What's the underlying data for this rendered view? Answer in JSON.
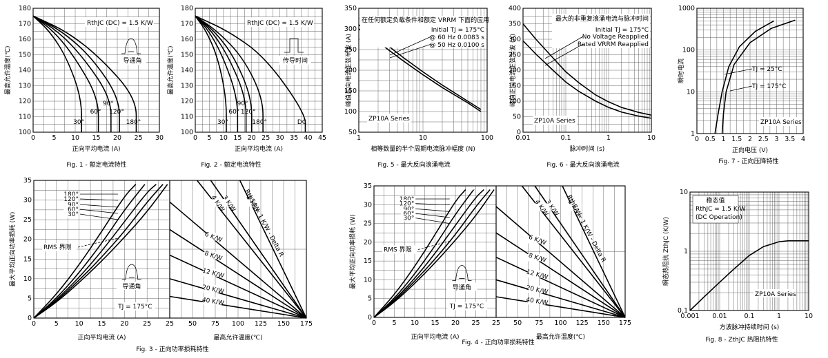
{
  "chart_data": [
    {
      "id": "fig1",
      "type": "line",
      "caption": "Fig. 1 - 额定电流特性",
      "xlabel": "正向平均电流 (A)",
      "ylabel": "最高允许温度(℃)",
      "xlim": [
        0,
        30
      ],
      "ylim": [
        100,
        180
      ],
      "xticks": [
        0,
        5,
        10,
        15,
        20,
        25,
        30
      ],
      "yticks": [
        100,
        110,
        120,
        130,
        140,
        150,
        160,
        170,
        180
      ],
      "grid": true,
      "annotations": [
        "RthJC (DC) = 1.5 K/W",
        "导通角"
      ],
      "series": [
        {
          "name": "30°",
          "x": [
            0,
            4,
            8,
            11.5,
            11.5
          ],
          "y": [
            175,
            165,
            148,
            122,
            100
          ]
        },
        {
          "name": "60°",
          "x": [
            0,
            5,
            10,
            15.5,
            15.5
          ],
          "y": [
            175,
            165,
            148,
            122,
            100
          ]
        },
        {
          "name": "90°",
          "x": [
            0,
            6,
            12,
            18.5,
            18.5
          ],
          "y": [
            175,
            165,
            148,
            122,
            100
          ]
        },
        {
          "name": "120°",
          "x": [
            0,
            7,
            14,
            20.5,
            20.5
          ],
          "y": [
            175,
            165,
            148,
            122,
            100
          ]
        },
        {
          "name": "180°",
          "x": [
            0,
            8,
            16,
            24.5,
            24.5
          ],
          "y": [
            175,
            165,
            148,
            122,
            100
          ]
        }
      ]
    },
    {
      "id": "fig2",
      "type": "line",
      "caption": "Fig. 2 - 额定电流特性",
      "xlabel": "正向平均电流 (A)",
      "ylabel": "最高允许温度(℃)",
      "xlim": [
        0,
        45
      ],
      "ylim": [
        100,
        180
      ],
      "xticks": [
        0,
        5,
        10,
        15,
        20,
        25,
        30,
        35,
        40,
        45
      ],
      "yticks": [
        100,
        110,
        120,
        130,
        140,
        150,
        160,
        170,
        180
      ],
      "grid": true,
      "annotations": [
        "RthJC (DC) = 1.5 K/W",
        "传导时间"
      ],
      "series": [
        {
          "name": "30°",
          "x": [
            0,
            4,
            8,
            11,
            11
          ],
          "y": [
            175,
            165,
            148,
            122,
            100
          ]
        },
        {
          "name": "60°",
          "x": [
            0,
            5,
            10,
            15,
            15
          ],
          "y": [
            175,
            165,
            148,
            122,
            100
          ]
        },
        {
          "name": "90°",
          "x": [
            0,
            6,
            12,
            18,
            18
          ],
          "y": [
            175,
            165,
            148,
            122,
            100
          ]
        },
        {
          "name": "120°",
          "x": [
            0,
            7,
            14,
            20,
            20
          ],
          "y": [
            175,
            165,
            148,
            122,
            100
          ]
        },
        {
          "name": "180°",
          "x": [
            0,
            8,
            17,
            24,
            24
          ],
          "y": [
            175,
            165,
            148,
            122,
            100
          ]
        },
        {
          "name": "DC",
          "x": [
            0,
            12,
            25,
            39,
            39
          ],
          "y": [
            175,
            165,
            148,
            112,
            100
          ]
        }
      ]
    },
    {
      "id": "fig5",
      "type": "line",
      "caption": "Fig. 5 - 最大反向浪涌电流",
      "xlabel": "相等数量的半个周期电流脉冲幅度 (N)",
      "ylabel": "峰值正向电流正弦半波 (A)",
      "xscale": "log",
      "xlim": [
        1,
        100
      ],
      "ylim": [
        50,
        350
      ],
      "xticks": [
        1,
        10,
        100
      ],
      "yticks": [
        50,
        100,
        150,
        200,
        250,
        300,
        350
      ],
      "grid": true,
      "annotations": [
        "在任何额定负载条件和额定 VRRM 下面的应用",
        "Initial TJ = 175°C",
        "@ 60 Hz 0.0083 s",
        "@ 50 Hz 0.0100 s",
        "ZP10A Series"
      ],
      "series": [
        {
          "name": "@ 60 Hz 0.0083 s",
          "x": [
            1,
            2,
            5,
            10,
            20,
            50,
            80
          ],
          "y": [
            310,
            278,
            230,
            196,
            164,
            125,
            105
          ]
        },
        {
          "name": "@ 50 Hz 0.0100 s",
          "x": [
            1,
            2,
            5,
            10,
            20,
            50,
            80
          ],
          "y": [
            300,
            268,
            222,
            189,
            158,
            121,
            100
          ]
        }
      ]
    },
    {
      "id": "fig6",
      "type": "line",
      "caption": "Fig. 6 - 最大反向浪涌电流",
      "xlabel": "脉冲时间 (s)",
      "ylabel": "峰值正向电流正弦半波 (A)",
      "xscale": "log",
      "xlim": [
        0.01,
        10
      ],
      "ylim": [
        0,
        400
      ],
      "xticks": [
        0.01,
        0.1,
        1,
        10
      ],
      "yticks": [
        0,
        50,
        100,
        150,
        200,
        250,
        300,
        350,
        400
      ],
      "grid": true,
      "annotations": [
        "最大的非重复浪涌电流与脉冲时间",
        "Initial TJ = 175°C",
        "No Voltage Reapplied",
        "Rated VRRM Reapplied",
        "ZP10A Series"
      ],
      "series": [
        {
          "name": "No Voltage Reapplied",
          "x": [
            0.01,
            0.02,
            0.05,
            0.1,
            0.2,
            0.5,
            1,
            2,
            5,
            10
          ],
          "y": [
            350,
            300,
            240,
            195,
            160,
            120,
            98,
            80,
            64,
            55
          ]
        },
        {
          "name": "Rated VRRM Reapplied",
          "x": [
            0.01,
            0.02,
            0.05,
            0.1,
            0.2,
            0.5,
            1,
            2,
            5,
            10
          ],
          "y": [
            295,
            252,
            200,
            162,
            132,
            100,
            80,
            65,
            52,
            45
          ]
        }
      ]
    },
    {
      "id": "fig7",
      "type": "line",
      "caption": "Fig. 7 - 正向压降特性",
      "xlabel": "正向电压 (V)",
      "ylabel": "瞬时电流",
      "yscale": "log",
      "xlim": [
        0,
        4
      ],
      "ylim": [
        1,
        1000
      ],
      "xticks": [
        0,
        0.5,
        1,
        1.5,
        2,
        2.5,
        3,
        3.5,
        4
      ],
      "yticks": [
        1,
        10,
        100,
        1000
      ],
      "grid": true,
      "annotations": [
        "TJ = 25°C",
        "TJ = 175°C",
        "ZP10A Series"
      ],
      "series": [
        {
          "name": "TJ = 25°C",
          "x": [
            0.68,
            0.8,
            0.95,
            1.2,
            1.6,
            2.2,
            2.9
          ],
          "y": [
            1,
            3,
            10,
            40,
            120,
            280,
            500
          ]
        },
        {
          "name": "TJ = 175°C",
          "x": [
            0.95,
            1.0,
            1.1,
            1.4,
            2.0,
            2.8,
            3.7
          ],
          "y": [
            1,
            3,
            10,
            45,
            150,
            330,
            520
          ]
        }
      ]
    },
    {
      "id": "fig3-left",
      "type": "line",
      "caption": "Fig. 3 - 正向功率损耗特性",
      "xlabel": "正向平均电流 (A)",
      "ylabel": "最大平均正向功率损耗 (W)",
      "xlim": [
        0,
        30
      ],
      "ylim": [
        0,
        35
      ],
      "xticks": [
        0,
        5,
        10,
        15,
        20,
        25
      ],
      "yticks": [
        0,
        5,
        10,
        15,
        20,
        25,
        30,
        35
      ],
      "grid": true,
      "annotations": [
        "RMS 界限",
        "导通角",
        "TJ = 175°C"
      ],
      "series": [
        {
          "name": "180°",
          "x": [
            0,
            5,
            10,
            15,
            20,
            25,
            29.5
          ],
          "y": [
            0,
            4,
            9,
            14.5,
            20.5,
            27,
            34
          ]
        },
        {
          "name": "120°",
          "x": [
            0,
            5,
            10,
            15,
            20,
            25,
            28.5
          ],
          "y": [
            0,
            4.3,
            9.6,
            15.5,
            22,
            29.5,
            34
          ]
        },
        {
          "name": "90°",
          "x": [
            0,
            5,
            10,
            15,
            20,
            25,
            27
          ],
          "y": [
            0,
            4.6,
            10.3,
            17,
            24.5,
            32,
            34
          ]
        },
        {
          "name": "60°",
          "x": [
            0,
            5,
            10,
            15,
            20,
            24.5
          ],
          "y": [
            0,
            5,
            11.5,
            19,
            27.5,
            34
          ]
        },
        {
          "name": "30°",
          "x": [
            0,
            5,
            10,
            15,
            20,
            22.5
          ],
          "y": [
            0,
            6,
            13.5,
            22,
            31,
            34
          ]
        }
      ]
    },
    {
      "id": "fig3-right",
      "type": "line",
      "xlabel": "最高允许温度(℃)",
      "xlim": [
        25,
        175
      ],
      "ylim": [
        0,
        35
      ],
      "xticks": [
        25,
        50,
        75,
        100,
        125,
        150,
        175
      ],
      "grid": true,
      "annotations": [
        "RthSA = 1 K/W - Delta R"
      ],
      "series": [
        {
          "name": "2 K/W",
          "x": [
            102,
            175
          ],
          "y": [
            35,
            0
          ]
        },
        {
          "name": "3 K/W",
          "x": [
            70,
            175
          ],
          "y": [
            35,
            0
          ]
        },
        {
          "name": "4 K/W",
          "x": [
            55,
            175
          ],
          "y": [
            35,
            0
          ]
        },
        {
          "name": "6 K/W",
          "x": [
            25,
            175
          ],
          "y": [
            29.5,
            0
          ]
        },
        {
          "name": "8 K/W",
          "x": [
            25,
            175
          ],
          "y": [
            22.5,
            0
          ]
        },
        {
          "name": "12 K/W",
          "x": [
            25,
            175
          ],
          "y": [
            16,
            0
          ]
        },
        {
          "name": "20 K/W",
          "x": [
            25,
            175
          ],
          "y": [
            10,
            0
          ]
        },
        {
          "name": "40 K/W",
          "x": [
            25,
            175
          ],
          "y": [
            5.5,
            0
          ]
        }
      ]
    },
    {
      "id": "fig4-left",
      "type": "line",
      "caption": "Fig. 4 - 正向功率损耗特性",
      "xlabel": "正向平均电流 (A)",
      "ylabel": "最大平均正向功率损耗 (W)",
      "xlim": [
        0,
        30
      ],
      "ylim": [
        0,
        35
      ],
      "xticks": [
        0,
        5,
        10,
        15,
        20,
        25
      ],
      "yticks": [
        0,
        5,
        10,
        15,
        20,
        25,
        30,
        35
      ],
      "grid": true,
      "annotations": [
        "RMS 界限",
        "导通角",
        "TJ = 175°C"
      ],
      "series": [
        {
          "name": "180°",
          "x": [
            0,
            5,
            10,
            15,
            20,
            25,
            29.5
          ],
          "y": [
            0,
            4,
            9,
            14.5,
            20.5,
            27,
            34
          ]
        },
        {
          "name": "120°",
          "x": [
            0,
            5,
            10,
            15,
            20,
            25,
            28.5
          ],
          "y": [
            0,
            4.3,
            9.6,
            15.5,
            22,
            29.5,
            34
          ]
        },
        {
          "name": "90°",
          "x": [
            0,
            5,
            10,
            15,
            20,
            25,
            27
          ],
          "y": [
            0,
            4.6,
            10.3,
            17,
            24.5,
            32,
            34
          ]
        },
        {
          "name": "60°",
          "x": [
            0,
            5,
            10,
            15,
            20,
            24.5
          ],
          "y": [
            0,
            5,
            11.5,
            19,
            27.5,
            34
          ]
        },
        {
          "name": "30°",
          "x": [
            0,
            5,
            10,
            15,
            20,
            22.5
          ],
          "y": [
            0,
            6,
            13.5,
            22,
            31,
            34
          ]
        }
      ]
    },
    {
      "id": "fig4-right",
      "type": "line",
      "xlabel": "最高允许温度(℃)",
      "xlim": [
        25,
        175
      ],
      "ylim": [
        0,
        35
      ],
      "xticks": [
        25,
        50,
        75,
        100,
        125,
        150,
        175
      ],
      "grid": true,
      "annotations": [
        "RthSA = 1 K/W - Delta R"
      ],
      "series": [
        {
          "name": "2 K/W",
          "x": [
            102,
            175
          ],
          "y": [
            35,
            0
          ]
        },
        {
          "name": "3 K/W",
          "x": [
            70,
            175
          ],
          "y": [
            35,
            0
          ]
        },
        {
          "name": "4 K/W",
          "x": [
            55,
            175
          ],
          "y": [
            35,
            0
          ]
        },
        {
          "name": "6 K/W",
          "x": [
            25,
            175
          ],
          "y": [
            29.5,
            0
          ]
        },
        {
          "name": "8 K/W",
          "x": [
            25,
            175
          ],
          "y": [
            22.5,
            0
          ]
        },
        {
          "name": "12 K/W",
          "x": [
            25,
            175
          ],
          "y": [
            16,
            0
          ]
        },
        {
          "name": "20 K/W",
          "x": [
            25,
            175
          ],
          "y": [
            10,
            0
          ]
        },
        {
          "name": "40 K/W",
          "x": [
            25,
            175
          ],
          "y": [
            5.5,
            0
          ]
        }
      ]
    },
    {
      "id": "fig8",
      "type": "line",
      "caption": "Fig. 8 - ZthJC 热阻抗特性",
      "xlabel": "方波脉冲持续时间 (s)",
      "ylabel": "瞬态热阻抗 ZthJC (K/W)",
      "xscale": "log",
      "yscale": "log",
      "xlim": [
        0.001,
        10
      ],
      "ylim": [
        0.1,
        10
      ],
      "xticks": [
        0.001,
        0.01,
        0.1,
        1,
        10
      ],
      "yticks": [
        0.1,
        1,
        10
      ],
      "grid": true,
      "annotations": [
        "稳态值",
        "RthJC = 1.5 K/W",
        "(DC Operation)",
        "ZP10A Series"
      ],
      "series": [
        {
          "name": "ZthJC",
          "x": [
            0.001,
            0.003,
            0.01,
            0.03,
            0.1,
            0.3,
            1,
            2,
            10
          ],
          "y": [
            0.1,
            0.17,
            0.3,
            0.5,
            0.85,
            1.2,
            1.45,
            1.5,
            1.5
          ]
        }
      ]
    }
  ]
}
